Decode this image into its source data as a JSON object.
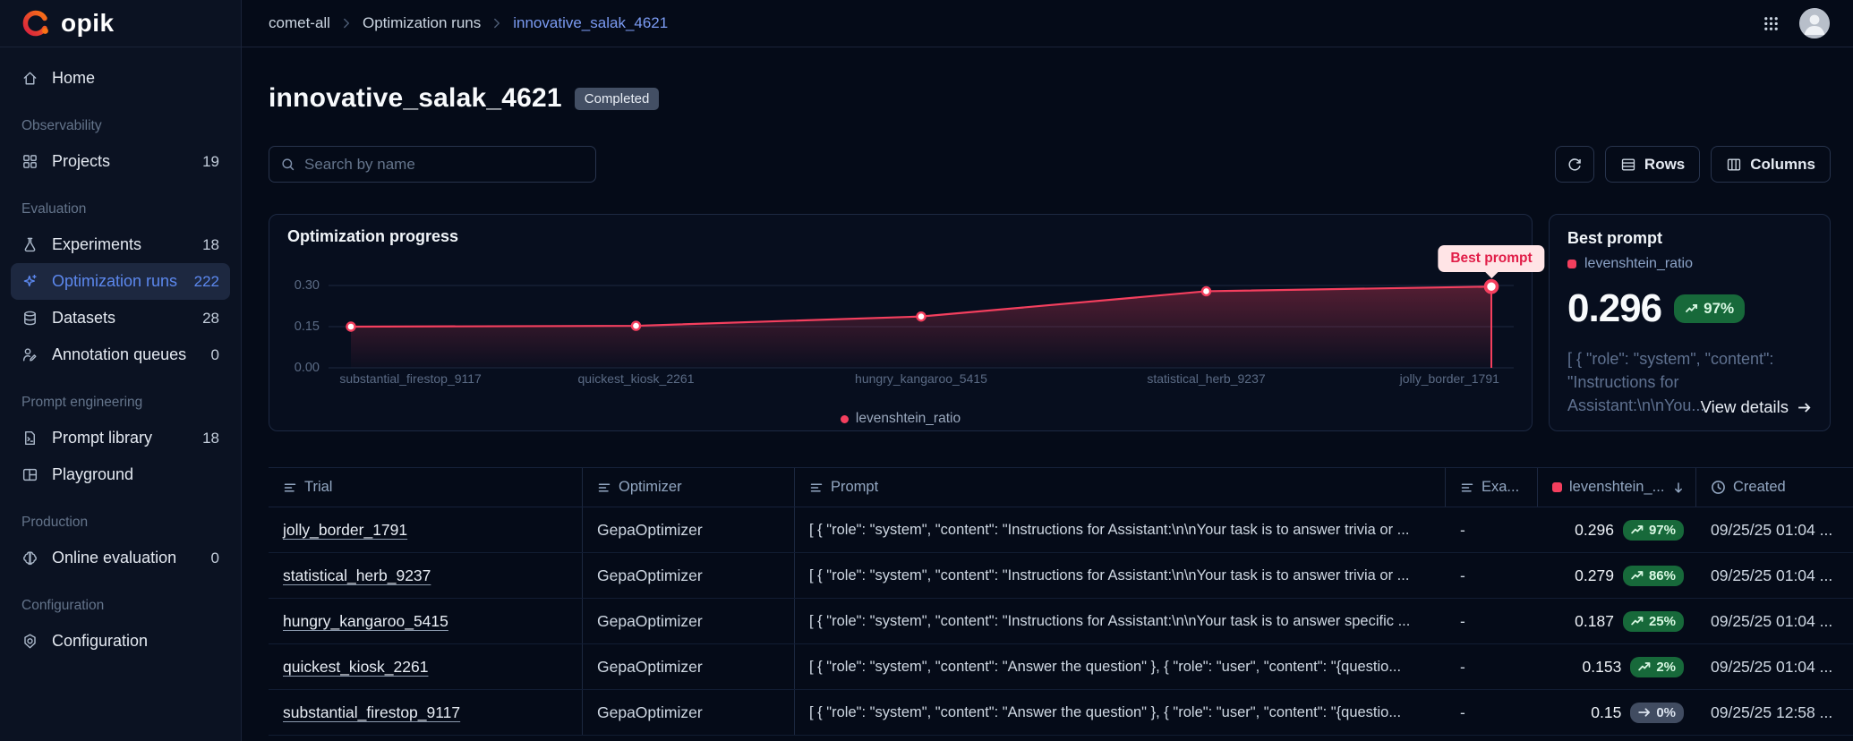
{
  "brand": {
    "name": "opik"
  },
  "topbar": {
    "breadcrumb": {
      "items": [
        "comet-all",
        "Optimization runs",
        "innovative_salak_4621"
      ]
    }
  },
  "sidebar": {
    "items": [
      {
        "type": "link",
        "icon": "home",
        "label": "Home"
      },
      {
        "type": "section",
        "label": "Observability"
      },
      {
        "type": "link",
        "icon": "projects",
        "label": "Projects",
        "count": "19"
      },
      {
        "type": "section",
        "label": "Evaluation"
      },
      {
        "type": "link",
        "icon": "experiments",
        "label": "Experiments",
        "count": "18"
      },
      {
        "type": "link",
        "icon": "optimization",
        "label": "Optimization runs",
        "count": "222",
        "active": true
      },
      {
        "type": "link",
        "icon": "datasets",
        "label": "Datasets",
        "count": "28"
      },
      {
        "type": "link",
        "icon": "annotation",
        "label": "Annotation queues",
        "count": "0"
      },
      {
        "type": "section",
        "label": "Prompt engineering"
      },
      {
        "type": "link",
        "icon": "prompt-library",
        "label": "Prompt library",
        "count": "18"
      },
      {
        "type": "link",
        "icon": "playground",
        "label": "Playground"
      },
      {
        "type": "section",
        "label": "Production"
      },
      {
        "type": "link",
        "icon": "online-eval",
        "label": "Online evaluation",
        "count": "0"
      },
      {
        "type": "section",
        "label": "Configuration"
      },
      {
        "type": "link",
        "icon": "configuration",
        "label": "Configuration"
      }
    ]
  },
  "page": {
    "title": "innovative_salak_4621",
    "status_badge": "Completed",
    "search_placeholder": "Search by name",
    "buttons": {
      "rows": "Rows",
      "columns": "Columns"
    }
  },
  "chart_data": {
    "type": "line",
    "title": "Optimization progress",
    "x": [
      "substantial_firestop_9117",
      "quickest_kiosk_2261",
      "hungry_kangaroo_5415",
      "statistical_herb_9237",
      "jolly_border_1791"
    ],
    "series": [
      {
        "name": "levenshtein_ratio",
        "values": [
          0.15,
          0.153,
          0.187,
          0.279,
          0.296
        ],
        "color": "#f43f5e"
      }
    ],
    "ylim": [
      0,
      0.3
    ],
    "yticks": [
      {
        "value": 0.3,
        "label": "0.30"
      },
      {
        "value": 0.15,
        "label": "0.15"
      },
      {
        "value": 0.0,
        "label": "0.00"
      }
    ],
    "grid": true,
    "legend_position": "bottom",
    "annotation": {
      "label": "Best prompt",
      "point_index": 4
    }
  },
  "best_prompt": {
    "title": "Best prompt",
    "metric_name": "levenshtein_ratio",
    "metric_color": "#f43f5e",
    "value": "0.296",
    "delta": "97%",
    "snippet": "[ { \"role\": \"system\", \"content\": \"Instructions for Assistant:\\n\\nYou...",
    "link_label": "View details"
  },
  "table": {
    "columns": [
      {
        "label": "Trial",
        "icon": "text"
      },
      {
        "label": "Optimizer",
        "icon": "text"
      },
      {
        "label": "Prompt",
        "icon": "text"
      },
      {
        "label": "Exa...",
        "icon": "text"
      },
      {
        "label": "levenshtein_...",
        "icon": "metric",
        "sort": "desc"
      },
      {
        "label": "Created",
        "icon": "clock"
      }
    ],
    "rows": [
      {
        "trial": "jolly_border_1791",
        "optimizer": "GepaOptimizer",
        "prompt": "[ { \"role\": \"system\", \"content\": \"Instructions for Assistant:\\n\\nYour task is to answer trivia or ...",
        "examples": "-",
        "score": "0.296",
        "delta": "97%",
        "trend": "up",
        "created": "09/25/25 01:04 ..."
      },
      {
        "trial": "statistical_herb_9237",
        "optimizer": "GepaOptimizer",
        "prompt": "[ { \"role\": \"system\", \"content\": \"Instructions for Assistant:\\n\\nYour task is to answer trivia or ...",
        "examples": "-",
        "score": "0.279",
        "delta": "86%",
        "trend": "up",
        "created": "09/25/25 01:04 ..."
      },
      {
        "trial": "hungry_kangaroo_5415",
        "optimizer": "GepaOptimizer",
        "prompt": "[ { \"role\": \"system\", \"content\": \"Instructions for Assistant:\\n\\nYour task is to answer specific ...",
        "examples": "-",
        "score": "0.187",
        "delta": "25%",
        "trend": "up",
        "created": "09/25/25 01:04 ..."
      },
      {
        "trial": "quickest_kiosk_2261",
        "optimizer": "GepaOptimizer",
        "prompt": "[ { \"role\": \"system\", \"content\": \"Answer the question\" }, { \"role\": \"user\", \"content\": \"{questio...",
        "examples": "-",
        "score": "0.153",
        "delta": "2%",
        "trend": "up",
        "created": "09/25/25 01:04 ..."
      },
      {
        "trial": "substantial_firestop_9117",
        "optimizer": "GepaOptimizer",
        "prompt": "[ { \"role\": \"system\", \"content\": \"Answer the question\" }, { \"role\": \"user\", \"content\": \"{questio...",
        "examples": "-",
        "score": "0.15",
        "delta": "0%",
        "trend": "flat",
        "created": "09/25/25 12:58 ..."
      }
    ]
  }
}
